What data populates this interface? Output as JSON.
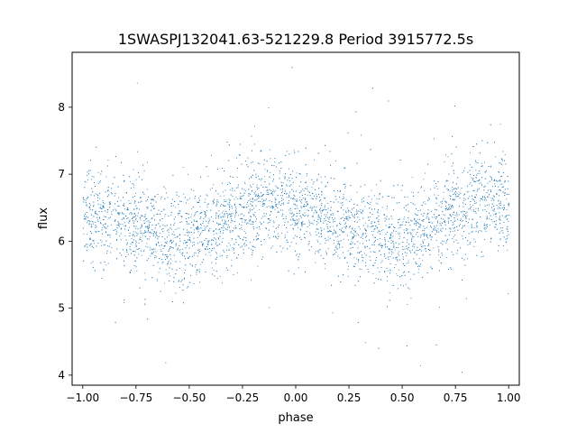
{
  "chart_data": {
    "type": "scatter",
    "title": "1SWASPJ132041.63-521229.8 Period 3915772.5s",
    "xlabel": "phase",
    "ylabel": "flux",
    "xlim": [
      -1.05,
      1.05
    ],
    "ylim": [
      3.85,
      8.82
    ],
    "x_ticks": [
      -1.0,
      -0.75,
      -0.5,
      -0.25,
      0.0,
      0.25,
      0.5,
      0.75,
      1.0
    ],
    "x_tick_labels": [
      "−1.00",
      "−0.75",
      "−0.50",
      "−0.25",
      "0.00",
      "0.25",
      "0.50",
      "0.75",
      "1.00"
    ],
    "y_ticks": [
      4,
      5,
      6,
      7,
      8
    ],
    "y_tick_labels": [
      "4",
      "5",
      "6",
      "7",
      "8"
    ],
    "grid": false,
    "legend": "none",
    "marker_color": "#1f77b4",
    "series": [
      {
        "profile_phase": [
          -1.0,
          -0.9,
          -0.8,
          -0.7,
          -0.6,
          -0.5,
          -0.4,
          -0.3,
          -0.2,
          -0.1,
          0.0,
          0.1,
          0.2,
          0.3,
          0.4,
          0.5,
          0.6,
          0.7,
          0.8,
          0.9,
          1.0
        ],
        "profile_median_flux": [
          6.4,
          6.35,
          6.3,
          6.2,
          6.1,
          6.05,
          6.2,
          6.35,
          6.55,
          6.6,
          6.5,
          6.35,
          6.25,
          6.15,
          6.05,
          6.05,
          6.15,
          6.35,
          6.55,
          6.6,
          6.5
        ],
        "typical_scatter": 0.35,
        "flux_min": 4.05,
        "flux_max": 8.6
      }
    ]
  }
}
